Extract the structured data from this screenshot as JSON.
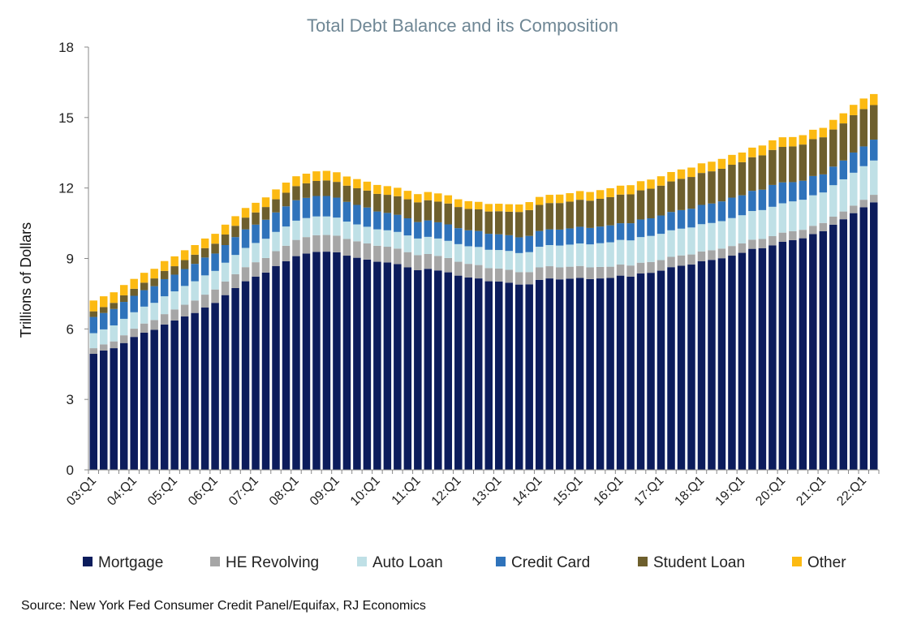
{
  "chart_data": {
    "type": "bar",
    "stacked": true,
    "title": "Total Debt Balance and its Composition",
    "ylabel": "Trillions of Dollars",
    "ylim": [
      0,
      18
    ],
    "yticks": [
      0,
      3,
      6,
      9,
      12,
      15,
      18
    ],
    "grid": false,
    "legend_position": "bottom",
    "source": "Source: New York Fed Consumer Credit Panel/Equifax, RJ Economics",
    "colors": [
      "#0c1c5c",
      "#a6a6a6",
      "#bfe0e6",
      "#2f73bb",
      "#6e5f2d",
      "#fcba12"
    ],
    "x_tick_labels": [
      "03:Q1",
      "04:Q1",
      "05:Q1",
      "06:Q1",
      "07:Q1",
      "08:Q1",
      "09:Q1",
      "10:Q1",
      "11:Q1",
      "12:Q1",
      "13:Q1",
      "14:Q1",
      "15:Q1",
      "16:Q1",
      "17:Q1",
      "18:Q1",
      "19:Q1",
      "20:Q1",
      "21:Q1",
      "22:Q1"
    ],
    "x_tick_every": 4,
    "categories": [
      "03:Q1",
      "03:Q2",
      "03:Q3",
      "03:Q4",
      "04:Q1",
      "04:Q2",
      "04:Q3",
      "04:Q4",
      "05:Q1",
      "05:Q2",
      "05:Q3",
      "05:Q4",
      "06:Q1",
      "06:Q2",
      "06:Q3",
      "06:Q4",
      "07:Q1",
      "07:Q2",
      "07:Q3",
      "07:Q4",
      "08:Q1",
      "08:Q2",
      "08:Q3",
      "08:Q4",
      "09:Q1",
      "09:Q2",
      "09:Q3",
      "09:Q4",
      "10:Q1",
      "10:Q2",
      "10:Q3",
      "10:Q4",
      "11:Q1",
      "11:Q2",
      "11:Q3",
      "11:Q4",
      "12:Q1",
      "12:Q2",
      "12:Q3",
      "12:Q4",
      "13:Q1",
      "13:Q2",
      "13:Q3",
      "13:Q4",
      "14:Q1",
      "14:Q2",
      "14:Q3",
      "14:Q4",
      "15:Q1",
      "15:Q2",
      "15:Q3",
      "15:Q4",
      "16:Q1",
      "16:Q2",
      "16:Q3",
      "16:Q4",
      "17:Q1",
      "17:Q2",
      "17:Q3",
      "17:Q4",
      "18:Q1",
      "18:Q2",
      "18:Q3",
      "18:Q4",
      "19:Q1",
      "19:Q2",
      "19:Q3",
      "19:Q4",
      "20:Q1",
      "20:Q2",
      "20:Q3",
      "20:Q4",
      "21:Q1",
      "21:Q2",
      "21:Q3",
      "21:Q4",
      "22:Q1",
      "22:Q2"
    ],
    "series": [
      {
        "name": "Mortgage",
        "values": [
          4.94,
          5.08,
          5.18,
          5.4,
          5.66,
          5.84,
          5.96,
          6.19,
          6.36,
          6.53,
          6.68,
          6.91,
          7.11,
          7.44,
          7.74,
          8.03,
          8.23,
          8.4,
          8.68,
          8.88,
          9.1,
          9.21,
          9.28,
          9.29,
          9.26,
          9.12,
          9.03,
          8.95,
          8.86,
          8.83,
          8.76,
          8.62,
          8.5,
          8.56,
          8.49,
          8.41,
          8.27,
          8.19,
          8.15,
          8.03,
          8.02,
          7.97,
          7.89,
          7.9,
          8.09,
          8.15,
          8.11,
          8.14,
          8.17,
          8.12,
          8.15,
          8.17,
          8.27,
          8.23,
          8.36,
          8.39,
          8.48,
          8.63,
          8.69,
          8.74,
          8.88,
          8.94,
          9.01,
          9.12,
          9.24,
          9.41,
          9.44,
          9.56,
          9.71,
          9.78,
          9.86,
          10.04,
          10.16,
          10.44,
          10.67,
          10.93,
          11.18,
          11.39
        ]
      },
      {
        "name": "HE Revolving",
        "values": [
          0.24,
          0.26,
          0.29,
          0.33,
          0.35,
          0.39,
          0.42,
          0.44,
          0.47,
          0.5,
          0.53,
          0.55,
          0.57,
          0.58,
          0.59,
          0.6,
          0.61,
          0.62,
          0.63,
          0.66,
          0.69,
          0.7,
          0.71,
          0.71,
          0.71,
          0.71,
          0.7,
          0.69,
          0.68,
          0.67,
          0.66,
          0.65,
          0.64,
          0.63,
          0.62,
          0.61,
          0.59,
          0.58,
          0.57,
          0.56,
          0.55,
          0.55,
          0.53,
          0.52,
          0.53,
          0.52,
          0.51,
          0.51,
          0.51,
          0.5,
          0.49,
          0.48,
          0.47,
          0.47,
          0.46,
          0.46,
          0.45,
          0.44,
          0.44,
          0.43,
          0.42,
          0.41,
          0.41,
          0.41,
          0.4,
          0.39,
          0.39,
          0.39,
          0.39,
          0.38,
          0.36,
          0.35,
          0.35,
          0.34,
          0.33,
          0.32,
          0.32,
          0.32
        ]
      },
      {
        "name": "Auto Loan",
        "values": [
          0.64,
          0.64,
          0.68,
          0.7,
          0.7,
          0.72,
          0.73,
          0.76,
          0.77,
          0.8,
          0.82,
          0.82,
          0.79,
          0.8,
          0.82,
          0.82,
          0.82,
          0.82,
          0.82,
          0.82,
          0.82,
          0.81,
          0.8,
          0.79,
          0.77,
          0.74,
          0.72,
          0.71,
          0.7,
          0.7,
          0.71,
          0.71,
          0.71,
          0.73,
          0.74,
          0.73,
          0.75,
          0.75,
          0.77,
          0.78,
          0.79,
          0.8,
          0.81,
          0.85,
          0.88,
          0.9,
          0.93,
          0.94,
          0.96,
          0.98,
          1.01,
          1.04,
          1.05,
          1.07,
          1.09,
          1.11,
          1.12,
          1.13,
          1.14,
          1.15,
          1.16,
          1.16,
          1.17,
          1.19,
          1.2,
          1.22,
          1.23,
          1.25,
          1.25,
          1.27,
          1.28,
          1.3,
          1.3,
          1.34,
          1.37,
          1.4,
          1.43,
          1.46
        ]
      },
      {
        "name": "Credit Card",
        "values": [
          0.69,
          0.7,
          0.7,
          0.72,
          0.7,
          0.7,
          0.71,
          0.73,
          0.71,
          0.72,
          0.74,
          0.76,
          0.74,
          0.75,
          0.76,
          0.79,
          0.78,
          0.81,
          0.83,
          0.86,
          0.87,
          0.86,
          0.87,
          0.87,
          0.85,
          0.84,
          0.83,
          0.82,
          0.76,
          0.74,
          0.73,
          0.73,
          0.7,
          0.7,
          0.69,
          0.7,
          0.68,
          0.68,
          0.68,
          0.68,
          0.67,
          0.67,
          0.67,
          0.69,
          0.67,
          0.67,
          0.68,
          0.69,
          0.71,
          0.7,
          0.71,
          0.72,
          0.71,
          0.73,
          0.75,
          0.75,
          0.78,
          0.78,
          0.79,
          0.8,
          0.82,
          0.83,
          0.84,
          0.87,
          0.85,
          0.86,
          0.87,
          0.93,
          0.89,
          0.82,
          0.81,
          0.82,
          0.77,
          0.79,
          0.8,
          0.86,
          0.84,
          0.89
        ]
      },
      {
        "name": "Student Loan",
        "values": [
          0.24,
          0.25,
          0.26,
          0.28,
          0.3,
          0.32,
          0.33,
          0.35,
          0.36,
          0.38,
          0.39,
          0.4,
          0.42,
          0.45,
          0.48,
          0.5,
          0.52,
          0.54,
          0.56,
          0.58,
          0.6,
          0.62,
          0.64,
          0.66,
          0.67,
          0.69,
          0.71,
          0.72,
          0.75,
          0.77,
          0.79,
          0.81,
          0.84,
          0.86,
          0.88,
          0.89,
          0.9,
          0.91,
          0.92,
          0.95,
          0.98,
          1.0,
          1.08,
          1.1,
          1.11,
          1.12,
          1.13,
          1.14,
          1.15,
          1.16,
          1.18,
          1.2,
          1.22,
          1.23,
          1.24,
          1.26,
          1.27,
          1.3,
          1.33,
          1.35,
          1.36,
          1.37,
          1.39,
          1.4,
          1.41,
          1.43,
          1.46,
          1.49,
          1.51,
          1.52,
          1.54,
          1.57,
          1.58,
          1.58,
          1.58,
          1.59,
          1.59,
          1.47
        ]
      },
      {
        "name": "Other",
        "values": [
          0.46,
          0.46,
          0.45,
          0.44,
          0.42,
          0.42,
          0.41,
          0.42,
          0.42,
          0.42,
          0.41,
          0.41,
          0.42,
          0.42,
          0.41,
          0.41,
          0.41,
          0.41,
          0.42,
          0.43,
          0.42,
          0.41,
          0.41,
          0.41,
          0.41,
          0.39,
          0.39,
          0.38,
          0.38,
          0.37,
          0.36,
          0.36,
          0.35,
          0.35,
          0.35,
          0.35,
          0.33,
          0.33,
          0.32,
          0.32,
          0.32,
          0.32,
          0.32,
          0.34,
          0.34,
          0.35,
          0.36,
          0.36,
          0.37,
          0.37,
          0.37,
          0.38,
          0.38,
          0.39,
          0.39,
          0.39,
          0.4,
          0.4,
          0.4,
          0.4,
          0.41,
          0.41,
          0.42,
          0.42,
          0.41,
          0.41,
          0.42,
          0.41,
          0.41,
          0.4,
          0.4,
          0.4,
          0.4,
          0.41,
          0.43,
          0.44,
          0.45,
          0.47
        ]
      }
    ]
  }
}
